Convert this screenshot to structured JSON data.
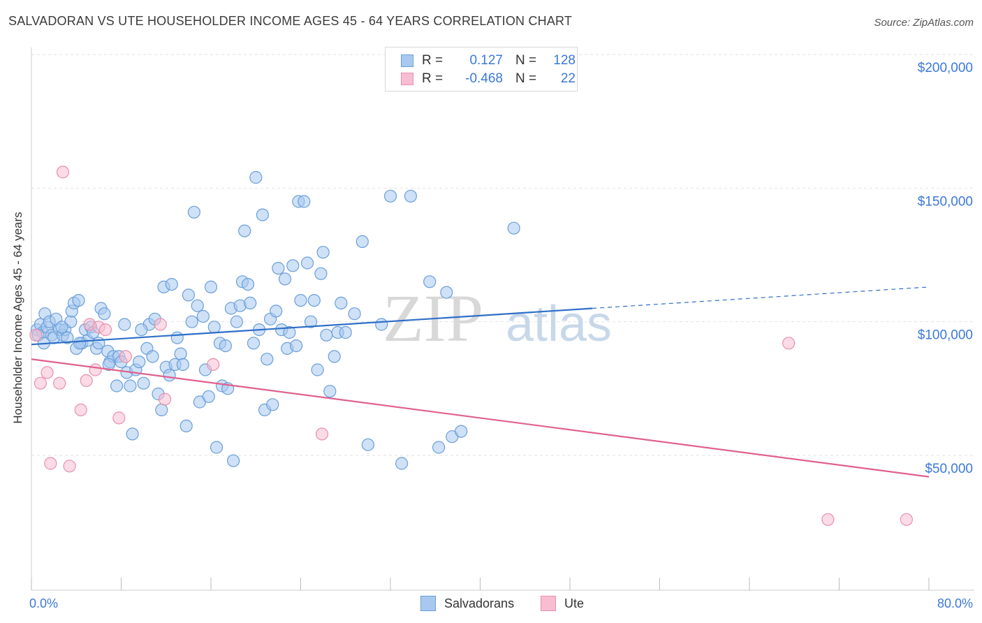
{
  "title": "SALVADORAN VS UTE HOUSEHOLDER INCOME AGES 45 - 64 YEARS CORRELATION CHART",
  "source": "Source: ZipAtlas.com",
  "watermark": {
    "zip": "ZIP",
    "atlas": "atlas"
  },
  "legend": {
    "rows": [
      {
        "r_label": "R =",
        "r_value": "0.127",
        "n_label": "N =",
        "n_value": "128",
        "fill": "#a8c8f0",
        "stroke": "#6a9fd8"
      },
      {
        "r_label": "R =",
        "r_value": "-0.468",
        "n_label": "N =",
        "n_value": "22",
        "fill": "#f8bdd0",
        "stroke": "#e890ae"
      }
    ]
  },
  "bottom_legend": [
    "Salvadorans",
    "Ute"
  ],
  "chart_data": {
    "type": "scatter",
    "title": "SALVADORAN VS UTE HOUSEHOLDER INCOME AGES 45 - 64 YEARS CORRELATION CHART",
    "xlabel": "",
    "ylabel": "Householder Income Ages 45 - 64 years",
    "xlim": [
      0,
      80
    ],
    "ylim": [
      0,
      210000
    ],
    "x_tick_labels": {
      "left": "0.0%",
      "right": "80.0%"
    },
    "y_ticks": [
      {
        "value": 50000,
        "label": "$50,000"
      },
      {
        "value": 100000,
        "label": "$100,000"
      },
      {
        "value": 150000,
        "label": "$150,000"
      },
      {
        "value": 200000,
        "label": "$200,000"
      }
    ],
    "grid": "horizontal dashed",
    "series": [
      {
        "name": "Salvadorans",
        "color": "#6a9fd8",
        "fill": "#a8c8f0",
        "trend": {
          "x0": 0,
          "y0": 91500,
          "x1": 50,
          "y1": 105000,
          "x_dash_end": 80,
          "y_dash_end": 113000,
          "color": "#2f6fc8"
        },
        "points": [
          [
            0.5,
            97000
          ],
          [
            0.8,
            99000
          ],
          [
            1.0,
            96000
          ],
          [
            1.2,
            103000
          ],
          [
            1.4,
            98000
          ],
          [
            1.6,
            100000
          ],
          [
            1.8,
            95000
          ],
          [
            2.0,
            94000
          ],
          [
            2.2,
            101000
          ],
          [
            2.5,
            97000
          ],
          [
            2.8,
            95000
          ],
          [
            3.0,
            97000
          ],
          [
            3.2,
            94000
          ],
          [
            3.5,
            100000
          ],
          [
            3.6,
            104000
          ],
          [
            3.8,
            107000
          ],
          [
            4.0,
            90000
          ],
          [
            4.2,
            108000
          ],
          [
            4.5,
            92000
          ],
          [
            4.8,
            97000
          ],
          [
            5.0,
            93000
          ],
          [
            5.3,
            98000
          ],
          [
            5.5,
            96000
          ],
          [
            5.8,
            90000
          ],
          [
            6.0,
            92000
          ],
          [
            6.2,
            105000
          ],
          [
            6.5,
            103000
          ],
          [
            6.8,
            89000
          ],
          [
            7.0,
            85000
          ],
          [
            7.3,
            87000
          ],
          [
            7.6,
            76000
          ],
          [
            7.8,
            87000
          ],
          [
            8.0,
            85000
          ],
          [
            8.3,
            99000
          ],
          [
            8.5,
            81000
          ],
          [
            8.8,
            76000
          ],
          [
            9.0,
            58000
          ],
          [
            9.3,
            82000
          ],
          [
            9.6,
            85000
          ],
          [
            10.0,
            77000
          ],
          [
            10.3,
            90000
          ],
          [
            10.5,
            99000
          ],
          [
            10.8,
            87000
          ],
          [
            11.0,
            101000
          ],
          [
            11.3,
            73000
          ],
          [
            11.6,
            67000
          ],
          [
            11.8,
            113000
          ],
          [
            12.0,
            83000
          ],
          [
            12.3,
            80000
          ],
          [
            12.5,
            114000
          ],
          [
            12.8,
            84000
          ],
          [
            13.0,
            94000
          ],
          [
            13.3,
            88000
          ],
          [
            13.5,
            84000
          ],
          [
            13.8,
            61000
          ],
          [
            14.0,
            110000
          ],
          [
            14.3,
            100000
          ],
          [
            14.5,
            141000
          ],
          [
            14.8,
            106000
          ],
          [
            15.0,
            70000
          ],
          [
            15.3,
            102000
          ],
          [
            15.5,
            82000
          ],
          [
            15.8,
            72000
          ],
          [
            16.0,
            113000
          ],
          [
            16.3,
            98000
          ],
          [
            16.5,
            53000
          ],
          [
            16.8,
            92000
          ],
          [
            17.0,
            76000
          ],
          [
            17.3,
            91000
          ],
          [
            17.5,
            75000
          ],
          [
            17.8,
            105000
          ],
          [
            18.0,
            48000
          ],
          [
            18.3,
            100000
          ],
          [
            18.6,
            106000
          ],
          [
            18.8,
            115000
          ],
          [
            19.0,
            134000
          ],
          [
            19.3,
            114000
          ],
          [
            19.5,
            107000
          ],
          [
            19.8,
            92000
          ],
          [
            20.0,
            154000
          ],
          [
            20.3,
            97000
          ],
          [
            20.6,
            140000
          ],
          [
            20.8,
            67000
          ],
          [
            21.0,
            86000
          ],
          [
            21.3,
            101000
          ],
          [
            21.5,
            69000
          ],
          [
            21.8,
            104000
          ],
          [
            22.0,
            120000
          ],
          [
            22.3,
            97000
          ],
          [
            22.6,
            116000
          ],
          [
            22.8,
            90000
          ],
          [
            23.0,
            96000
          ],
          [
            23.3,
            121000
          ],
          [
            23.6,
            91000
          ],
          [
            23.8,
            145000
          ],
          [
            24.0,
            108000
          ],
          [
            24.3,
            145000
          ],
          [
            24.6,
            122000
          ],
          [
            24.9,
            100000
          ],
          [
            25.2,
            108000
          ],
          [
            25.5,
            82000
          ],
          [
            25.8,
            118000
          ],
          [
            26.0,
            126000
          ],
          [
            26.3,
            95000
          ],
          [
            26.6,
            74000
          ],
          [
            27.0,
            87000
          ],
          [
            27.3,
            96000
          ],
          [
            27.6,
            107000
          ],
          [
            28.0,
            96000
          ],
          [
            28.8,
            103000
          ],
          [
            29.5,
            130000
          ],
          [
            30.0,
            54000
          ],
          [
            31.2,
            99000
          ],
          [
            32.0,
            147000
          ],
          [
            33.0,
            47000
          ],
          [
            33.8,
            147000
          ],
          [
            35.5,
            115000
          ],
          [
            36.3,
            53000
          ],
          [
            37.0,
            111000
          ],
          [
            37.5,
            57000
          ],
          [
            38.3,
            59000
          ],
          [
            43.0,
            135000
          ],
          [
            0.6,
            95000
          ],
          [
            1.1,
            92000
          ],
          [
            2.7,
            98000
          ],
          [
            4.3,
            92000
          ],
          [
            6.9,
            84000
          ],
          [
            9.8,
            97000
          ]
        ]
      },
      {
        "name": "Ute",
        "color": "#e890ae",
        "fill": "#f8bdd0",
        "trend": {
          "x0": 0,
          "y0": 86000,
          "x1": 80,
          "y1": 42000,
          "color": "#e0608e"
        },
        "points": [
          [
            0.4,
            95000
          ],
          [
            0.8,
            77000
          ],
          [
            1.4,
            81000
          ],
          [
            1.7,
            47000
          ],
          [
            2.5,
            77000
          ],
          [
            2.8,
            156000
          ],
          [
            3.4,
            46000
          ],
          [
            4.4,
            67000
          ],
          [
            4.9,
            78000
          ],
          [
            5.2,
            99000
          ],
          [
            5.7,
            82000
          ],
          [
            6.0,
            98000
          ],
          [
            6.6,
            97000
          ],
          [
            7.8,
            64000
          ],
          [
            8.4,
            87000
          ],
          [
            11.5,
            99000
          ],
          [
            11.9,
            71000
          ],
          [
            16.2,
            84000
          ],
          [
            25.9,
            58000
          ],
          [
            67.5,
            92000
          ],
          [
            71.0,
            26000
          ],
          [
            78.0,
            26000
          ]
        ]
      }
    ]
  }
}
